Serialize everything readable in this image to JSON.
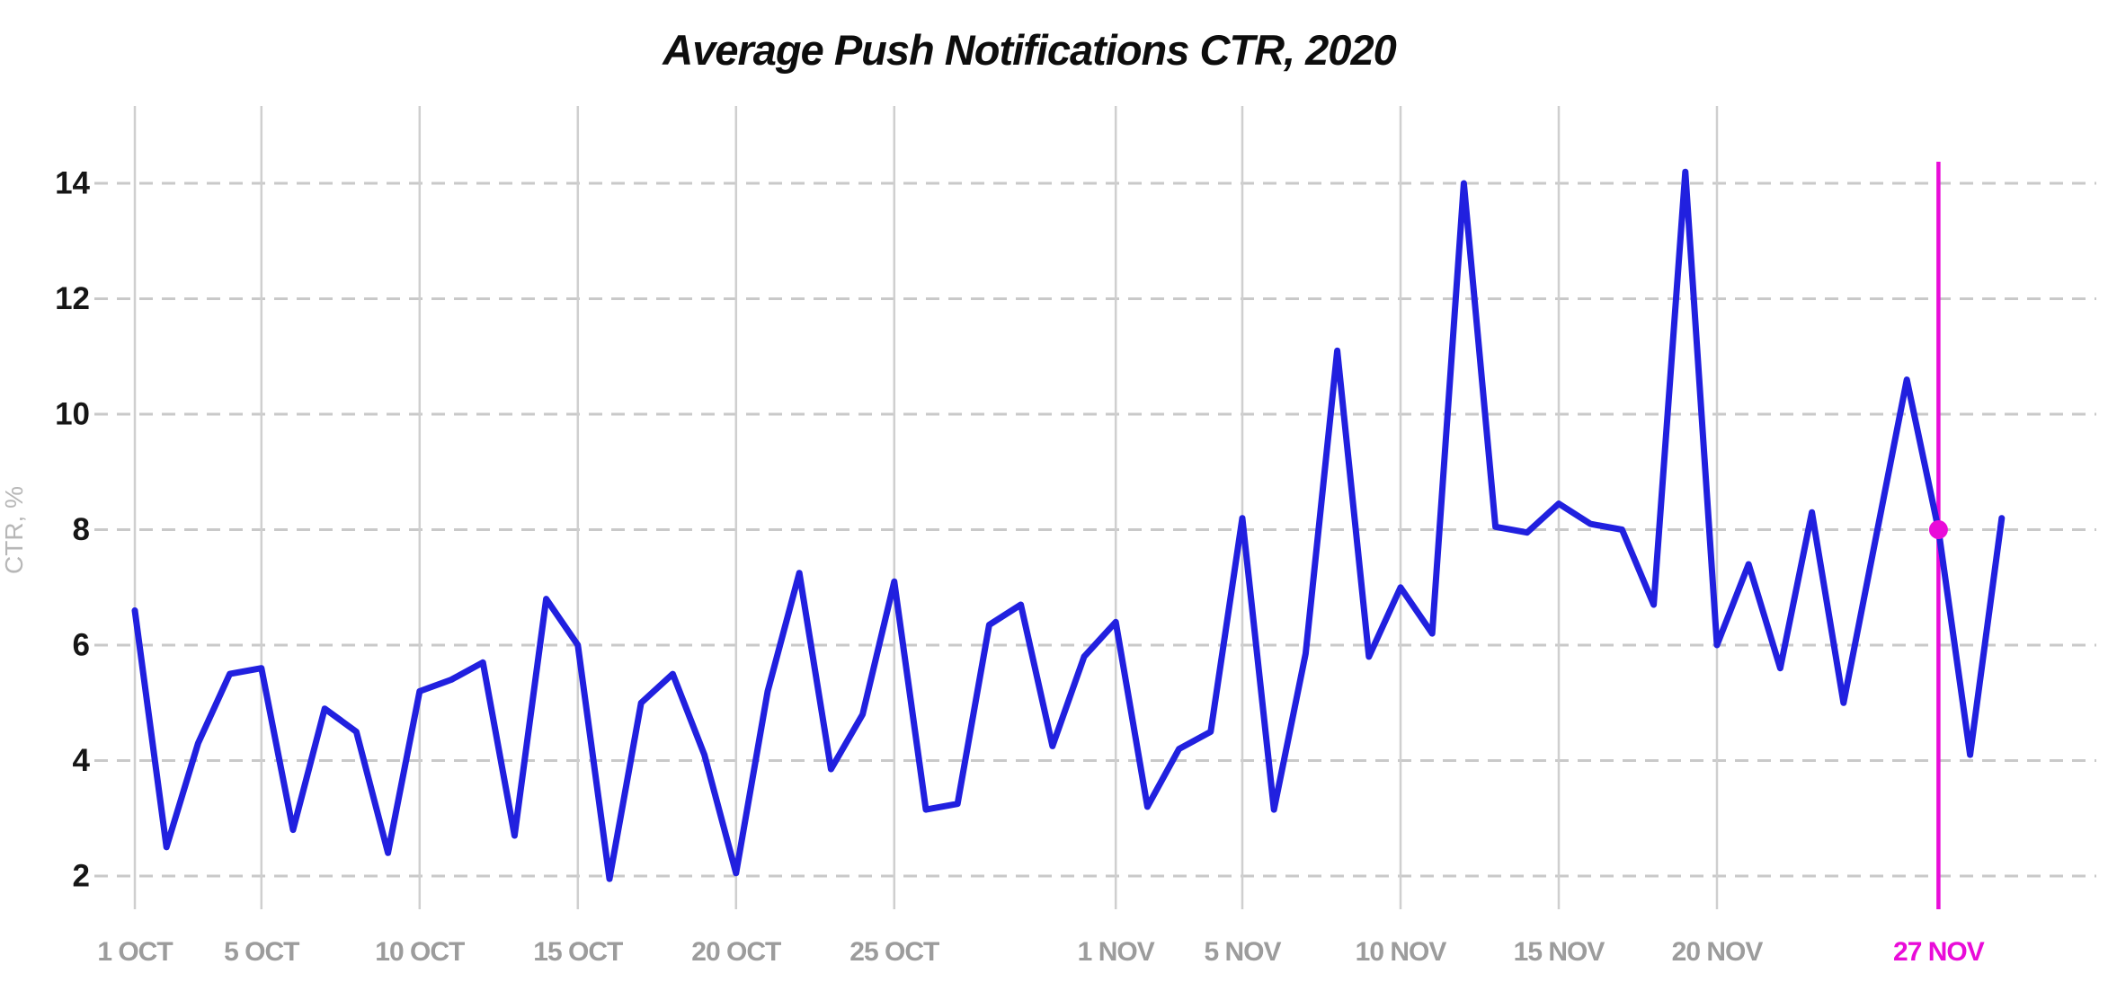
{
  "title": "Average Push Notifications CTR, 2020",
  "y_axis": {
    "label": "CTR, %",
    "ticks": [
      2,
      4,
      6,
      8,
      10,
      12,
      14
    ]
  },
  "x_axis": {
    "tick_labels": [
      "1 OCT",
      "5 OCT",
      "10 OCT",
      "15 OCT",
      "20 OCT",
      "25 OCT",
      "1 NOV",
      "5 NOV",
      "10 NOV",
      "15 NOV",
      "20 NOV",
      "27 NOV"
    ],
    "tick_day_indices": [
      0,
      4,
      9,
      14,
      19,
      24,
      31,
      35,
      40,
      45,
      50,
      57
    ]
  },
  "highlight": {
    "label": "27 NOV",
    "day_index": 57,
    "value": 8.0
  },
  "colors": {
    "series_line": "#2120df",
    "highlight": "#e90cd8",
    "grid_vertical": "#cfcfcf",
    "grid_dashed": "#c9c9c9",
    "x_tick_text": "#9c9c9c",
    "y_tick_text": "#161616",
    "y_axis_title_text": "#b7b7b7",
    "title_text": "#0d0d0d",
    "background": "#ffffff"
  },
  "chart_data": {
    "type": "line",
    "title": "Average Push Notifications CTR, 2020",
    "xlabel": "",
    "ylabel": "CTR, %",
    "ylim": [
      2,
      14
    ],
    "grid": "both (vertical solid at labeled dates, horizontal dashed at even values)",
    "legend": "none",
    "x": [
      "1 OCT",
      "2 OCT",
      "3 OCT",
      "4 OCT",
      "5 OCT",
      "6 OCT",
      "7 OCT",
      "8 OCT",
      "9 OCT",
      "10 OCT",
      "11 OCT",
      "12 OCT",
      "13 OCT",
      "14 OCT",
      "15 OCT",
      "16 OCT",
      "17 OCT",
      "18 OCT",
      "19 OCT",
      "20 OCT",
      "21 OCT",
      "22 OCT",
      "23 OCT",
      "24 OCT",
      "25 OCT",
      "26 OCT",
      "27 OCT",
      "28 OCT",
      "29 OCT",
      "30 OCT",
      "31 OCT",
      "1 NOV",
      "2 NOV",
      "3 NOV",
      "4 NOV",
      "5 NOV",
      "6 NOV",
      "7 NOV",
      "8 NOV",
      "9 NOV",
      "10 NOV",
      "11 NOV",
      "12 NOV",
      "13 NOV",
      "14 NOV",
      "15 NOV",
      "16 NOV",
      "17 NOV",
      "18 NOV",
      "19 NOV",
      "20 NOV",
      "21 NOV",
      "22 NOV",
      "23 NOV",
      "24 NOV",
      "25 NOV",
      "26 NOV",
      "27 NOV",
      "28 NOV",
      "29 NOV"
    ],
    "values": [
      6.6,
      2.5,
      4.3,
      5.5,
      5.6,
      2.8,
      4.9,
      4.5,
      2.4,
      5.2,
      5.4,
      5.7,
      2.7,
      6.8,
      6.0,
      1.95,
      5.0,
      5.5,
      4.1,
      2.05,
      5.2,
      7.25,
      3.85,
      4.8,
      7.1,
      3.15,
      3.25,
      6.35,
      6.7,
      4.25,
      5.8,
      6.4,
      3.2,
      4.2,
      4.5,
      8.2,
      3.15,
      5.85,
      11.1,
      5.8,
      7.0,
      6.2,
      14.0,
      8.05,
      7.95,
      8.45,
      8.1,
      8.0,
      6.7,
      14.2,
      6.0,
      7.4,
      5.6,
      8.3,
      5.0,
      7.8,
      10.6,
      8.0,
      4.1,
      8.2
    ],
    "highlight_point": {
      "x": "27 NOV",
      "value": 8.0
    }
  }
}
